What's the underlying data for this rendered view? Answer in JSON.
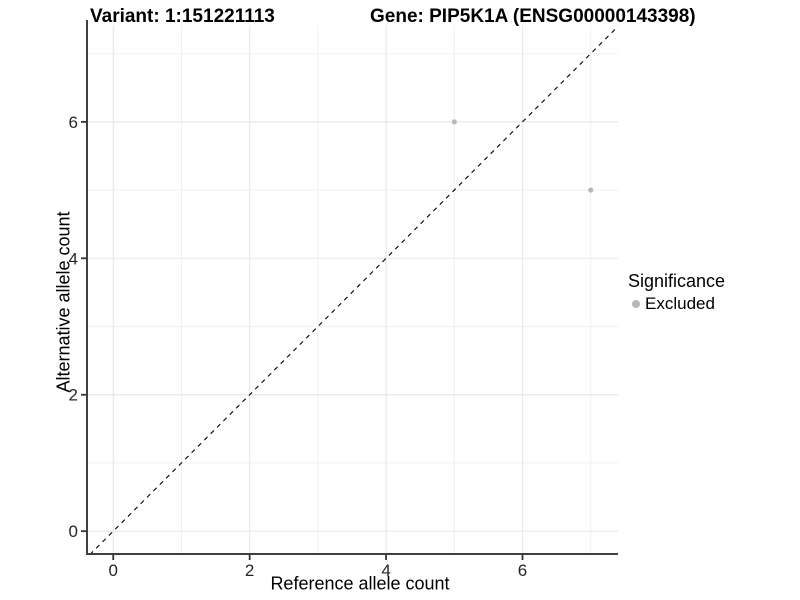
{
  "chart_data": {
    "type": "scatter",
    "title_variant": "Variant: 1:151221113",
    "title_gene": "Gene: PIP5K1A (ENSG00000143398)",
    "xlabel": "Reference allele count",
    "ylabel": "Alternative allele count",
    "xlim": [
      -0.37,
      7.4
    ],
    "ylim": [
      -0.32,
      7.42
    ],
    "xticks": [
      0,
      2,
      4,
      6
    ],
    "yticks": [
      0,
      2,
      4,
      6
    ],
    "xticks_minor": [
      1,
      3,
      5,
      7
    ],
    "yticks_minor": [
      1,
      3,
      5,
      7
    ],
    "grid": true,
    "legend_position": "right",
    "series": [
      {
        "name": "Excluded",
        "color": "#b9b9b9",
        "points": [
          [
            5,
            6
          ],
          [
            7,
            5
          ]
        ]
      }
    ],
    "reference_line": {
      "type": "identity",
      "slope": 1,
      "intercept": 0,
      "style": "dashed",
      "color": "#000000"
    },
    "legend": {
      "title": "Significance",
      "entries": [
        {
          "label": "Excluded",
          "color": "#b9b9b9"
        }
      ]
    }
  },
  "colors": {
    "background": "#ffffff",
    "grid_major": "#e9e9e9",
    "grid_minor": "#efefef",
    "axis_line": "#3f3f3f",
    "tick_mark": "#333333",
    "tick_text": "#262626",
    "text": "#000000"
  }
}
